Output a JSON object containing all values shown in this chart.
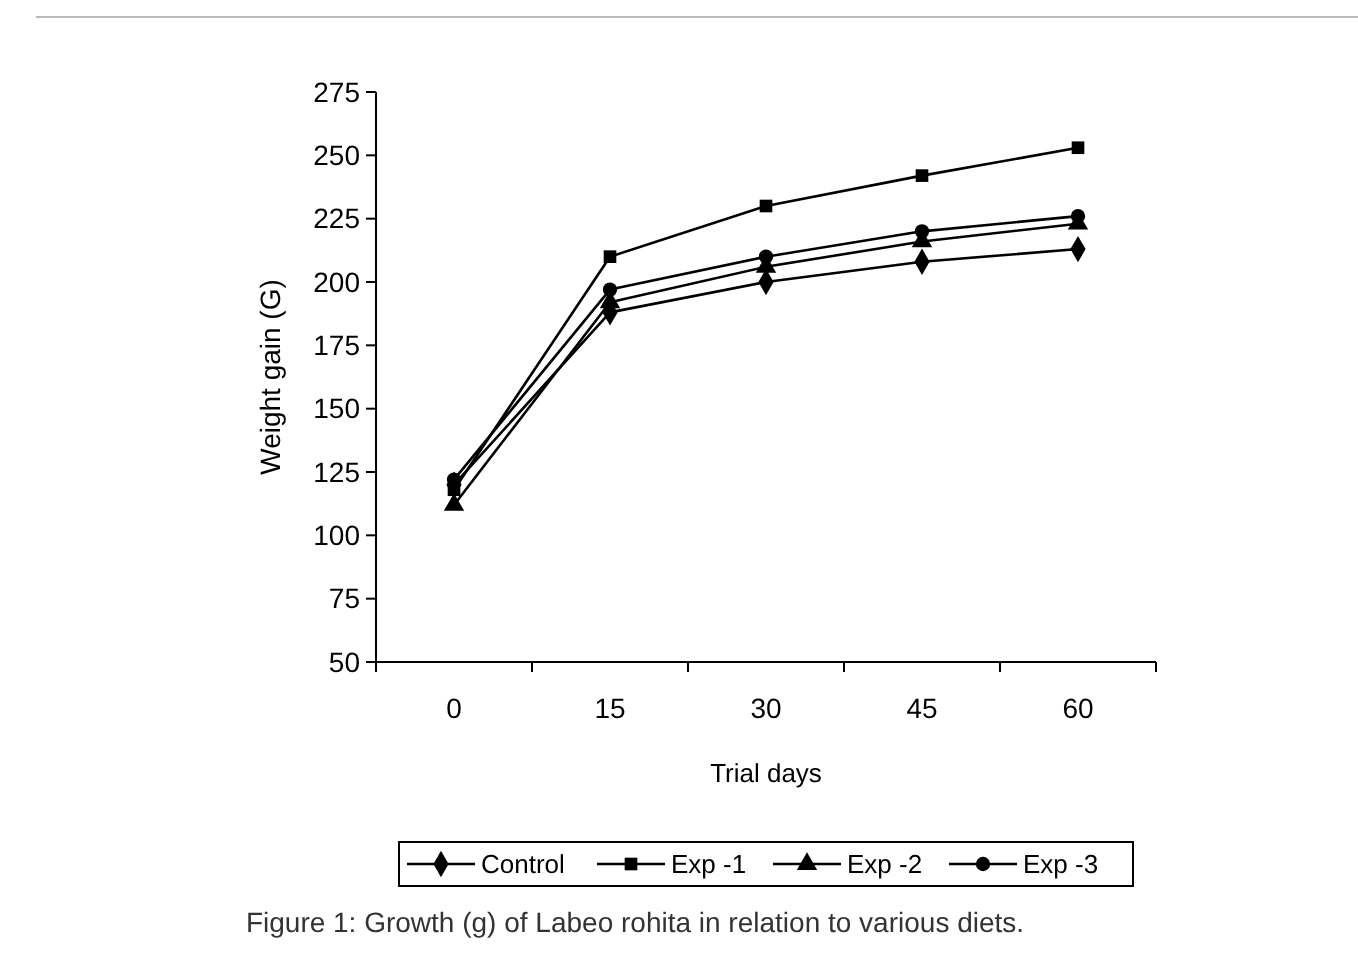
{
  "chart_data": {
    "type": "line",
    "xlabel": "Trial days",
    "ylabel": "Weight gain (G)",
    "categories": [
      "0",
      "15",
      "30",
      "45",
      "60"
    ],
    "ylim": [
      50,
      275
    ],
    "yticks": [
      50,
      75,
      100,
      125,
      150,
      175,
      200,
      225,
      250,
      275
    ],
    "grid": false,
    "legend": "bottom",
    "line_style": "solid",
    "series": [
      {
        "name": "Control",
        "color": "#000000",
        "marker": "diamond",
        "values": [
          120,
          188,
          200,
          208,
          213
        ]
      },
      {
        "name": "Exp -1",
        "color": "#000000",
        "marker": "square",
        "values": [
          118,
          210,
          230,
          242,
          253
        ]
      },
      {
        "name": "Exp -2",
        "color": "#000000",
        "marker": "triangle",
        "values": [
          112,
          192,
          206,
          216,
          223
        ]
      },
      {
        "name": "Exp -3",
        "color": "#000000",
        "marker": "circle",
        "values": [
          122,
          197,
          210,
          220,
          226
        ]
      }
    ],
    "annotations": [
      "Figure 1: Growth (g) of Labeo rohita in relation to various diets."
    ]
  }
}
